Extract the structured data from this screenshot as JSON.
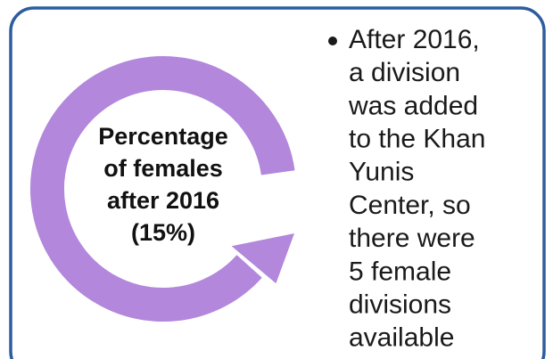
{
  "cycle_label": {
    "lines": [
      "Percentage",
      "of females",
      "after 2016",
      "(15%)"
    ]
  },
  "bullet": {
    "lines": [
      "After 2016,",
      "a division",
      "was added",
      "to the Khan",
      "Yunis",
      "Center, so",
      "there were",
      "5 female",
      "divisions",
      "available"
    ]
  }
}
